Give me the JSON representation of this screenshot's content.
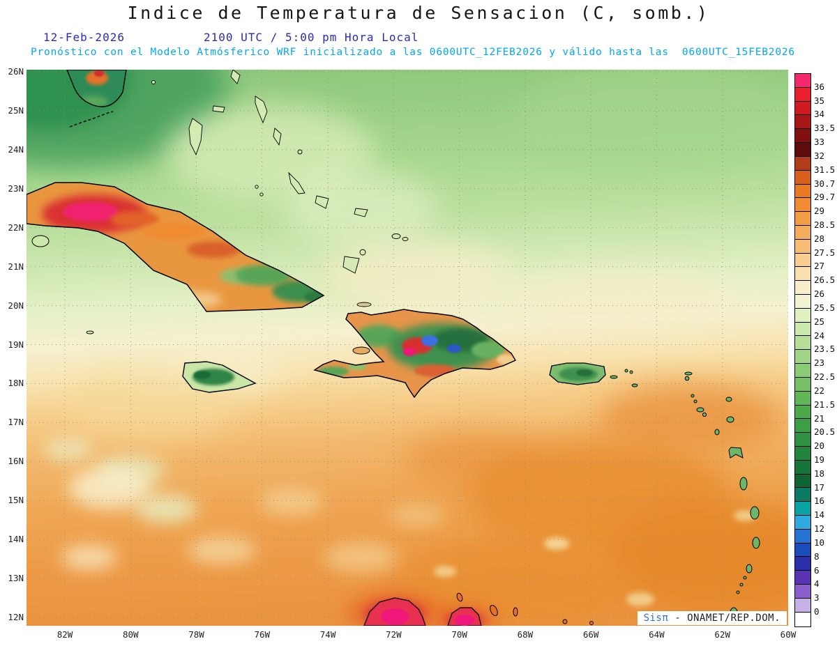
{
  "header": {
    "title": "Indice de Temperatura de Sensacion (C, somb.)",
    "date": "12-Feb-2026",
    "time": "2100 UTC / 5:00 pm Hora Local",
    "forecast_note": "Pronóstico con el Modelo Atmósferico WRF inicializado a las 0600UTC_12FEB2026 y válido hasta las  0600UTC_15FEB2026"
  },
  "map": {
    "lat_labels": [
      "26N",
      "25N",
      "24N",
      "23N",
      "22N",
      "21N",
      "20N",
      "19N",
      "18N",
      "17N",
      "16N",
      "15N",
      "14N",
      "13N",
      "12N"
    ],
    "lon_labels": [
      "82W",
      "80W",
      "78W",
      "76W",
      "74W",
      "72W",
      "70W",
      "68W",
      "66W",
      "64W",
      "62W",
      "60W"
    ],
    "watermark": {
      "brand": "Sisπ",
      "rest": " - ONAMET/REP.DOM."
    }
  },
  "colorbar": {
    "units": "C",
    "labels": [
      "36",
      "35",
      "34",
      "33.5",
      "33",
      "32",
      "31.5",
      "30.7",
      "29.7",
      "29",
      "28.5",
      "28",
      "27.5",
      "27",
      "26.5",
      "26",
      "25.5",
      "25",
      "24",
      "23.5",
      "23",
      "22.5",
      "22",
      "21.5",
      "21",
      "20.5",
      "20",
      "19",
      "18",
      "17",
      "16",
      "14",
      "12",
      "10",
      "8",
      "6",
      "4",
      "3",
      "0"
    ],
    "colors": [
      "#f3286e",
      "#ea1f2e",
      "#cf1b20",
      "#a81616",
      "#811010",
      "#5e0b0b",
      "#b03c1a",
      "#d95f1e",
      "#e87a24",
      "#ef8c32",
      "#f29c44",
      "#f4ad5c",
      "#f6bd74",
      "#f8ce90",
      "#f9dfae",
      "#f9edca",
      "#f2f3d0",
      "#e2efc0",
      "#cde8ac",
      "#b7df98",
      "#a1d586",
      "#8bcb74",
      "#75c064",
      "#60b556",
      "#4caa4b",
      "#3c9e45",
      "#2e9242",
      "#22853e",
      "#187539",
      "#0e6433",
      "#0b7a63",
      "#0aa3a3",
      "#30a8e0",
      "#2472d2",
      "#1c4cba",
      "#2a2ea8",
      "#5a34b2",
      "#8c5ecc",
      "#c6b0e6",
      "#ffffff"
    ]
  }
}
